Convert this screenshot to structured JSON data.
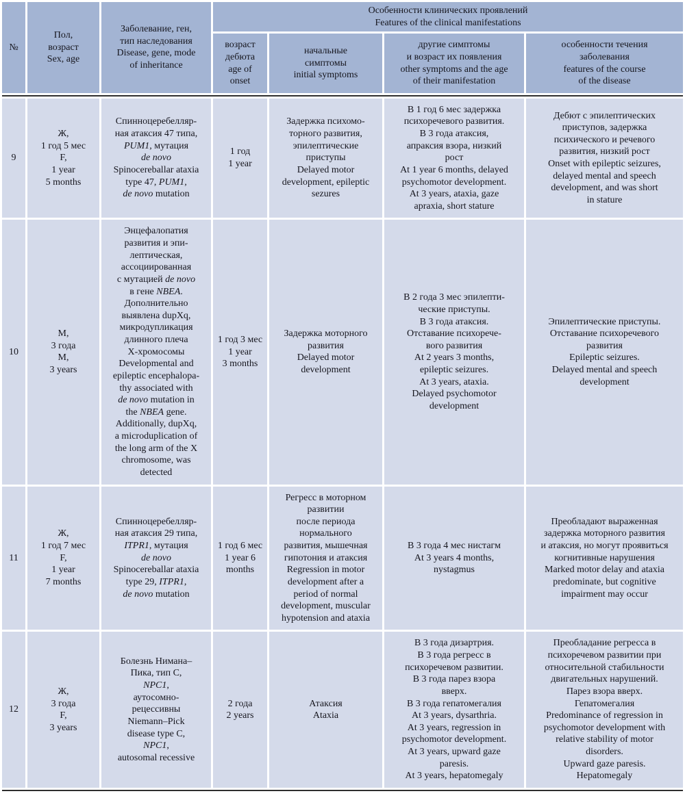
{
  "colors": {
    "header_bg": "#a3b4d3",
    "body_bg": "#d4daea",
    "divider_rule": "#2e2e2e",
    "text": "#16161e",
    "gap": "#ffffff"
  },
  "header": {
    "no": "№",
    "sex_age": "Пол,\nвозраст\nSex, age",
    "disease": "Заболевание, ген,\nтип наследования\nDisease, gene, mode\nof inheritance",
    "group": "Особенности клинических проявлений\nFeatures of the clinical manifestations",
    "onset": "возраст\nдебюта\nage of\nonset",
    "initial": "начальные\nсимптомы\ninitial symptoms",
    "other": "другие симптомы\nи возраст их появления\nother symptoms and the age\nof their manifestation",
    "course": "особенности течения\nзаболевания\nfeatures of the course\nof the disease"
  },
  "rows": [
    {
      "no": "9",
      "sex_age": "Ж,\n1 год 5 мес\nF,\n1 year\n5 months",
      "disease": "Спинноцеребелляр-\nная атаксия 47 типа,\n*PUM1*, мутация\n*de novo*\nSpinocereballar ataxia\ntype 47, *PUM1*,\n*de novo* mutation",
      "onset": "1 год\n1 year",
      "initial": "Задержка психомо-\nторного развития,\nэпилептические\nприступы\nDelayed motor\ndevelopment, epileptic\nsezures",
      "other": "В 1 год 6 мес задержка\nпсихоречевого развития.\nВ 3 года атаксия,\nапраксия взора, низкий\nрост\nAt 1 year 6 months, delayed\npsychomotor development.\nAt 3 years, ataxia, gaze\napraxia, short stature",
      "course": "Дебют с эпилептических\nприступов, задержка\nпсихического и речевого\nразвития, низкий рост\nOnset with epileptic seizures,\ndelayed mental and speech\ndevelopment, and was short\nin stature"
    },
    {
      "no": "10",
      "sex_age": "М,\n3 года\nM,\n3 years",
      "disease": "Энцефалопатия\nразвития и эпи-\nлептическая,\nассоциированная\nс мутацией *de novo*\nв гене *NBEA*.\nДополнительно\nвыявлена dupXq,\nмикродупликация\nдлинного плеча\nX-хромосомы\nDevelopmental and\nepileptic encephalopa-\nthy associated with\n*de novo* mutation in\nthe *NBEA* gene.\nAdditionally, dupXq,\na microduplication of\nthe long arm of the X\nchromosome, was\ndetected",
      "onset": "1 год 3 мес\n1 year\n3 months",
      "initial": "Задержка моторного\nразвития\nDelayed motor\ndevelopment",
      "other": "В 2 года 3 мес эпилепти-\nческие приступы.\nВ 3 года атаксия.\nОтставание психорече-\nвого развития\nAt 2 years 3 months,\nepileptic seizures.\nAt 3 years, ataxia.\nDelayed psychomotor\ndevelopment",
      "course": "Эпилептические приступы.\nОтставание психоречевого\nразвития\nEpileptic seizures.\nDelayed mental and speech\ndevelopment"
    },
    {
      "no": "11",
      "sex_age": "Ж,\n1 год 7 мес\nF,\n1 year\n7 months",
      "disease": "Спинноцеребелляр-\nная атаксия 29 типа,\n*ITPR1*, мутация\n*de novo*\nSpinocereballar ataxia\ntype 29, *ITPR1*,\n*de novo* mutation",
      "onset": "1 год 6 мес\n1 year 6\nmonths",
      "initial": "Регресс в моторном\nразвитии\nпосле периода\nнормального\nразвития, мышечная\nгипотония и атаксия\nRegression in motor\ndevelopment after a\nperiod of normal\ndevelopment, muscular\nhypotension and ataxia",
      "other": "В 3 года 4 мес нистагм\nAt 3 years 4 months,\nnystagmus",
      "course": "Преобладают выраженная\nзадержка моторного развития\nи атаксия, но могут проявиться\nкогнитивные нарушения\nMarked motor delay and ataxia\npredominate, but cognitive\nimpairment may occur"
    },
    {
      "no": "12",
      "sex_age": "Ж,\n3 года\nF,\n3 years",
      "disease": "Болезнь Нимана–\nПика, тип С,\n*NPC1*,\nаутосомно-\nрецессивны\nNiemann–Pick\ndisease type C,\n*NPC1*,\nautosomal recessive",
      "onset": "2 года\n2 years",
      "initial": "Атаксия\nAtaxia",
      "other": "В 3 года дизартрия.\nВ 3 года регресс в\nпсихоречевом развитии.\nВ 3 года парез взора\nвверх.\nВ 3 года гепатомегалия\nAt 3 years, dysarthria.\nAt 3 years, regression in\npsychomotor development.\nAt 3 years, upward gaze\nparesis.\nAt 3 years, hepatomegaly",
      "course": "Преобладание регресса в\nпсихоречевом развитии при\nотносительной стабильности\nдвигательных нарушений.\nПарез взора вверх.\nГепатомегалия\nPredominance of regression in\npsychomotor development with\nrelative stability of motor\ndisorders.\nUpward gaze paresis.\nHepatomegaly"
    }
  ]
}
